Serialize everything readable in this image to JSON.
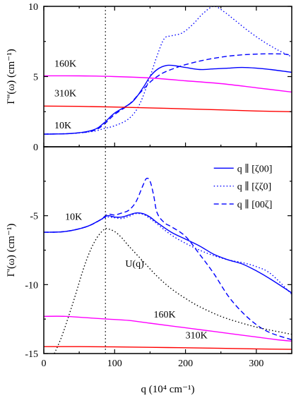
{
  "chart_data": [
    {
      "type": "line",
      "panel": "top",
      "ylabel": "Γ''(ω) (cm⁻¹)",
      "xlabel": "",
      "xlim": [
        0,
        350
      ],
      "ylim": [
        0,
        10
      ],
      "xticks": [
        0,
        100,
        200,
        300
      ],
      "yticks": [
        0,
        5,
        10
      ],
      "tick_labels": [
        "0",
        "5",
        "10"
      ],
      "grid": false,
      "annotations": [
        {
          "text": "160K",
          "x": 15,
          "y": 5.7
        },
        {
          "text": "310K",
          "x": 15,
          "y": 3.6
        },
        {
          "text": "10K",
          "x": 15,
          "y": 1.3
        }
      ],
      "series": [
        {
          "color": "#0000ff",
          "dash": "solid",
          "x": [
            0,
            40,
            70,
            85,
            100,
            125,
            140,
            150,
            160,
            170,
            180,
            200,
            220,
            240,
            260,
            280,
            300,
            320,
            350
          ],
          "y": [
            0.9,
            0.95,
            1.2,
            1.7,
            2.4,
            3.2,
            4.2,
            5.0,
            5.5,
            5.75,
            5.8,
            5.65,
            5.5,
            5.55,
            5.6,
            5.65,
            5.6,
            5.5,
            5.3
          ]
        },
        {
          "color": "#0000ff",
          "dash": "dotted",
          "x": [
            0,
            40,
            70,
            85,
            100,
            120,
            135,
            150,
            160,
            170,
            180,
            195,
            210,
            225,
            240,
            255,
            270,
            290,
            310,
            330,
            350
          ],
          "y": [
            0.9,
            0.95,
            1.1,
            1.3,
            1.5,
            2.0,
            3.0,
            5.0,
            6.5,
            7.7,
            7.9,
            8.1,
            8.7,
            9.5,
            10.0,
            9.6,
            9.0,
            8.2,
            7.5,
            6.9,
            6.4
          ]
        },
        {
          "color": "#0000ff",
          "dash": "dashed",
          "x": [
            0,
            40,
            70,
            85,
            100,
            120,
            135,
            150,
            160,
            170,
            185,
            200,
            220,
            240,
            260,
            280,
            300,
            320,
            340,
            350
          ],
          "y": [
            0.9,
            0.95,
            1.15,
            1.6,
            2.3,
            3.0,
            3.8,
            4.6,
            5.0,
            5.3,
            5.6,
            5.85,
            6.1,
            6.3,
            6.45,
            6.55,
            6.6,
            6.62,
            6.6,
            6.5
          ]
        },
        {
          "color": "#ff00ff",
          "dash": "solid",
          "x": [
            0,
            50,
            100,
            150,
            200,
            250,
            300,
            350
          ],
          "y": [
            5.05,
            5.05,
            5.0,
            4.9,
            4.7,
            4.5,
            4.2,
            3.9
          ]
        },
        {
          "color": "#ff0000",
          "dash": "solid",
          "x": [
            0,
            50,
            100,
            150,
            200,
            250,
            300,
            350
          ],
          "y": [
            2.9,
            2.88,
            2.83,
            2.77,
            2.7,
            2.63,
            2.55,
            2.5
          ]
        }
      ]
    },
    {
      "type": "line",
      "panel": "bottom",
      "ylabel": "Γ'(ω) (cm⁻¹)",
      "xlabel": "q (10⁴ cm⁻¹)",
      "xlim": [
        0,
        350
      ],
      "ylim": [
        -15,
        0
      ],
      "xticks": [
        0,
        100,
        200,
        300
      ],
      "yticks": [
        -15,
        -10,
        -5
      ],
      "xtick_labels": [
        "0",
        "100",
        "200",
        "300"
      ],
      "ytick_labels": [
        "-15",
        "-10",
        "-5"
      ],
      "grid": false,
      "legend_position": "top-right",
      "legend": [
        {
          "label": "q ∥ [ζ00]",
          "dash": "solid",
          "color": "#0000ff"
        },
        {
          "label": "q ∥ [ζζ0]",
          "dash": "dotted",
          "color": "#0000ff"
        },
        {
          "label": "q ∥ [00ζ]",
          "dash": "dashed",
          "color": "#0000ff"
        }
      ],
      "annotations": [
        {
          "text": "10K",
          "x": 30,
          "y": -5.3
        },
        {
          "text": "U(q)",
          "x": 115,
          "y": -8.7
        },
        {
          "text": "160K",
          "x": 155,
          "y": -12.4
        },
        {
          "text": "310K",
          "x": 200,
          "y": -13.9
        }
      ],
      "series": [
        {
          "color": "#0000ff",
          "dash": "solid",
          "x": [
            0,
            30,
            60,
            80,
            90,
            100,
            110,
            120,
            130,
            140,
            150,
            160,
            180,
            200,
            220,
            240,
            260,
            280,
            300,
            320,
            350
          ],
          "y": [
            -6.2,
            -6.15,
            -5.8,
            -5.3,
            -5.0,
            -5.1,
            -5.1,
            -4.95,
            -4.8,
            -4.85,
            -5.1,
            -5.5,
            -6.2,
            -6.7,
            -7.2,
            -7.8,
            -8.2,
            -8.5,
            -9.0,
            -9.6,
            -10.6
          ]
        },
        {
          "color": "#0000ff",
          "dash": "dotted",
          "x": [
            0,
            30,
            60,
            80,
            90,
            100,
            110,
            120,
            130,
            140,
            150,
            160,
            180,
            200,
            220,
            240,
            260,
            280,
            300,
            320,
            350
          ],
          "y": [
            -6.2,
            -6.15,
            -5.8,
            -5.3,
            -5.1,
            -5.15,
            -5.2,
            -5.05,
            -4.85,
            -4.9,
            -5.2,
            -5.6,
            -6.4,
            -7.0,
            -7.5,
            -7.9,
            -8.2,
            -8.4,
            -8.7,
            -9.2,
            -10.7
          ]
        },
        {
          "color": "#0000ff",
          "dash": "dashed",
          "x": [
            0,
            30,
            60,
            80,
            90,
            100,
            110,
            120,
            130,
            140,
            145,
            150,
            155,
            160,
            170,
            180,
            200,
            220,
            240,
            260,
            280,
            300,
            320,
            350
          ],
          "y": [
            -6.2,
            -6.15,
            -5.8,
            -5.3,
            -4.9,
            -4.95,
            -4.8,
            -4.6,
            -4.0,
            -2.8,
            -2.3,
            -2.5,
            -3.5,
            -4.8,
            -5.5,
            -5.8,
            -6.5,
            -7.8,
            -9.2,
            -10.8,
            -12.0,
            -12.9,
            -13.5,
            -14.0
          ]
        },
        {
          "color": "#000000",
          "dash": "dotted",
          "x": [
            15,
            25,
            35,
            45,
            55,
            65,
            75,
            85,
            90,
            100,
            110,
            120,
            140,
            160,
            180,
            200,
            220,
            250,
            280,
            310,
            350
          ],
          "y": [
            -15.0,
            -13.8,
            -12.3,
            -10.7,
            -9.0,
            -7.6,
            -6.6,
            -6.0,
            -5.95,
            -6.15,
            -6.6,
            -7.2,
            -8.3,
            -9.4,
            -10.3,
            -11.0,
            -11.6,
            -12.3,
            -12.8,
            -13.2,
            -13.6
          ]
        },
        {
          "color": "#ff00ff",
          "dash": "solid",
          "x": [
            0,
            30,
            60,
            90,
            120,
            150,
            180,
            210,
            240,
            270,
            300,
            330,
            350
          ],
          "y": [
            -12.3,
            -12.3,
            -12.4,
            -12.5,
            -12.6,
            -12.8,
            -13.0,
            -13.2,
            -13.4,
            -13.6,
            -13.8,
            -14.0,
            -14.1
          ]
        },
        {
          "color": "#ff0000",
          "dash": "solid",
          "x": [
            0,
            50,
            100,
            150,
            200,
            250,
            300,
            350
          ],
          "y": [
            -14.5,
            -14.5,
            -14.52,
            -14.55,
            -14.58,
            -14.62,
            -14.66,
            -14.7
          ]
        }
      ]
    }
  ]
}
